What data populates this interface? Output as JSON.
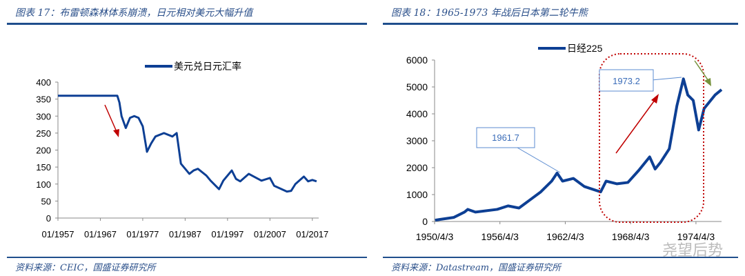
{
  "left": {
    "title": "图表 17：布雷顿森林体系崩溃，日元相对美元大幅升值",
    "source": "资料来源：CEIC，国盛证券研究所"
  },
  "right": {
    "title": "图表 18：1965-1973 年战后日本第二轮牛熊",
    "source": "资料来源：Datastream，国盛证券研究所"
  },
  "watermark": "尧望后势",
  "colors": {
    "series": "#0d3f94",
    "arrow_red": "#c00000",
    "arrow_green": "#76923c",
    "box_red": "#c00000",
    "rule": "#1f4e8c"
  },
  "chart_data": [
    {
      "type": "line",
      "legend": "top",
      "series": [
        {
          "name": "美元兑日元汇率",
          "x": [
            1957,
            1971,
            1971.5,
            1972,
            1973,
            1974,
            1975,
            1976,
            1977,
            1978,
            1979,
            1980,
            1982,
            1984,
            1985,
            1986,
            1987,
            1988,
            1989,
            1990,
            1992,
            1993,
            1995,
            1996,
            1998,
            1999,
            2000,
            2002,
            2005,
            2007,
            2008,
            2011,
            2012,
            2013,
            2015,
            2016,
            2017,
            2018
          ],
          "y": [
            360,
            360,
            340,
            300,
            265,
            295,
            300,
            295,
            270,
            195,
            220,
            240,
            250,
            240,
            250,
            160,
            145,
            130,
            140,
            145,
            125,
            110,
            85,
            110,
            140,
            115,
            108,
            130,
            110,
            118,
            95,
            78,
            80,
            100,
            122,
            108,
            112,
            108
          ]
        }
      ],
      "yticks": [
        0,
        50,
        100,
        150,
        200,
        250,
        300,
        350,
        400
      ],
      "ylim": [
        0,
        400
      ],
      "xticks": [
        "01/1957",
        "01/1967",
        "01/1977",
        "01/1987",
        "01/1997",
        "01/2007",
        "01/2017"
      ],
      "xlim": [
        1957,
        2018.5
      ],
      "annotations": [
        {
          "type": "arrow",
          "color": "red"
        }
      ]
    },
    {
      "type": "line",
      "legend": "top",
      "series": [
        {
          "name": "日经225",
          "x": [
            1950.3,
            1952,
            1953,
            1953.3,
            1954,
            1956,
            1957,
            1958,
            1959,
            1960,
            1961,
            1961.5,
            1962,
            1963,
            1964,
            1965.5,
            1966,
            1967,
            1968,
            1969,
            1970,
            1970.5,
            1971,
            1971.8,
            1972.5,
            1973.1,
            1973.5,
            1974,
            1974.5,
            1975,
            1976,
            1976.6
          ],
          "y": [
            50,
            150,
            350,
            450,
            350,
            450,
            580,
            500,
            800,
            1100,
            1500,
            1800,
            1500,
            1600,
            1300,
            1100,
            1500,
            1400,
            1450,
            1900,
            2400,
            1950,
            2200,
            2700,
            4300,
            5300,
            4700,
            4500,
            3400,
            4200,
            4700,
            4900
          ]
        }
      ],
      "yticks": [
        0,
        1000,
        2000,
        3000,
        4000,
        5000,
        6000
      ],
      "ylim": [
        0,
        6000
      ],
      "xticks": [
        "1950/4/3",
        "1956/4/3",
        "1962/4/3",
        "1968/4/3",
        "1974/4/3"
      ],
      "xlim": [
        1950.25,
        1976.6
      ],
      "annotations": [
        {
          "type": "callout",
          "text": "1961.7"
        },
        {
          "type": "callout",
          "text": "1973.2"
        },
        {
          "type": "highlight-box",
          "color": "red"
        },
        {
          "type": "arrow",
          "color": "red"
        },
        {
          "type": "arrow",
          "color": "green"
        }
      ]
    }
  ]
}
